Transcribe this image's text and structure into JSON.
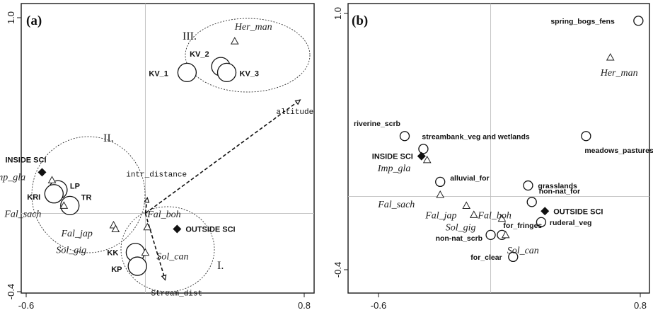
{
  "chart_data": [
    {
      "type": "scatter",
      "panel_label": "(a)",
      "xlim": [
        -0.6,
        0.8
      ],
      "ylim": [
        -0.4,
        1.0
      ],
      "x_ticks": [
        "-0.6",
        "0.8"
      ],
      "y_ticks": [
        "1.0",
        "-0.4"
      ],
      "grid": false,
      "sites": [
        {
          "label": "KV_1",
          "x": 0.21,
          "y": 0.72
        },
        {
          "label": "KV_2",
          "x": 0.38,
          "y": 0.75
        },
        {
          "label": "KV_3",
          "x": 0.41,
          "y": 0.72
        },
        {
          "label": "LP",
          "x": -0.44,
          "y": 0.12
        },
        {
          "label": "KRI",
          "x": -0.46,
          "y": 0.1
        },
        {
          "label": "TR",
          "x": -0.38,
          "y": 0.04
        },
        {
          "label": "KK",
          "x": -0.05,
          "y": -0.2
        },
        {
          "label": "KP",
          "x": -0.04,
          "y": -0.27
        }
      ],
      "species": [
        {
          "label": "Her_man",
          "x": 0.45,
          "y": 0.88
        },
        {
          "label": "Imp_gla",
          "x": -0.47,
          "y": 0.17
        },
        {
          "label": "Fal_sach",
          "x": -0.41,
          "y": 0.04
        },
        {
          "label": "Fal_jap",
          "x": -0.16,
          "y": -0.06
        },
        {
          "label": "Sol_gig",
          "x": -0.15,
          "y": -0.08
        },
        {
          "label": "Fal_boh",
          "x": 0.01,
          "y": -0.07
        },
        {
          "label": "Sol_can",
          "x": 0.0,
          "y": -0.2
        }
      ],
      "groups": [
        {
          "label": "INSIDE SCI",
          "x": -0.52,
          "y": 0.21
        },
        {
          "label": "OUTSIDE SCI",
          "x": 0.16,
          "y": -0.08
        }
      ],
      "vectors": [
        {
          "label": "altitude",
          "x": 0.78,
          "y": 0.58
        },
        {
          "label": "intr_distance",
          "x": 0.01,
          "y": 0.08
        },
        {
          "label": "Stream_dist",
          "x": 0.1,
          "y": -0.34
        }
      ],
      "cluster_labels": [
        "III.",
        "II.",
        "I."
      ]
    },
    {
      "type": "scatter",
      "panel_label": "(b)",
      "xlim": [
        -0.6,
        0.8
      ],
      "ylim": [
        -0.4,
        1.0
      ],
      "x_ticks": [
        "-0.6",
        "0.8"
      ],
      "y_ticks": [
        "1.0",
        "-0.4"
      ],
      "grid": false,
      "env_vars": [
        {
          "label": "spring_bogs_fens",
          "x": 0.79,
          "y": 0.96
        },
        {
          "label": "riverine_scrb",
          "x": -0.46,
          "y": 0.33
        },
        {
          "label": "streambank_veg and wetlands",
          "x": -0.36,
          "y": 0.26
        },
        {
          "label": "meadows_pastures",
          "x": 0.51,
          "y": 0.33
        },
        {
          "label": "alluvial_for",
          "x": -0.27,
          "y": 0.08
        },
        {
          "label": "grasslands",
          "x": 0.2,
          "y": 0.06
        },
        {
          "label": "non-nat_for",
          "x": 0.22,
          "y": -0.03
        },
        {
          "label": "ruderal_veg",
          "x": 0.27,
          "y": -0.14
        },
        {
          "label": "for_fringes",
          "x": 0.06,
          "y": -0.21
        },
        {
          "label": "non-nat_scrb",
          "x": 0.0,
          "y": -0.21
        },
        {
          "label": "for_clear",
          "x": 0.12,
          "y": -0.33
        }
      ],
      "species": [
        {
          "label": "Her_man",
          "x": 0.64,
          "y": 0.76
        },
        {
          "label": "Imp_gla",
          "x": -0.34,
          "y": 0.2
        },
        {
          "label": "Fal_sach",
          "x": -0.27,
          "y": 0.01
        },
        {
          "label": "Fal_jap",
          "x": -0.13,
          "y": -0.05
        },
        {
          "label": "Sol_gig",
          "x": -0.09,
          "y": -0.1
        },
        {
          "label": "Fal_boh",
          "x": 0.06,
          "y": -0.12
        },
        {
          "label": "Sol_can",
          "x": 0.08,
          "y": -0.21
        }
      ],
      "groups": [
        {
          "label": "INSIDE SCI",
          "x": -0.37,
          "y": 0.22
        },
        {
          "label": "OUTSIDE SCI",
          "x": 0.29,
          "y": -0.08
        }
      ]
    }
  ]
}
